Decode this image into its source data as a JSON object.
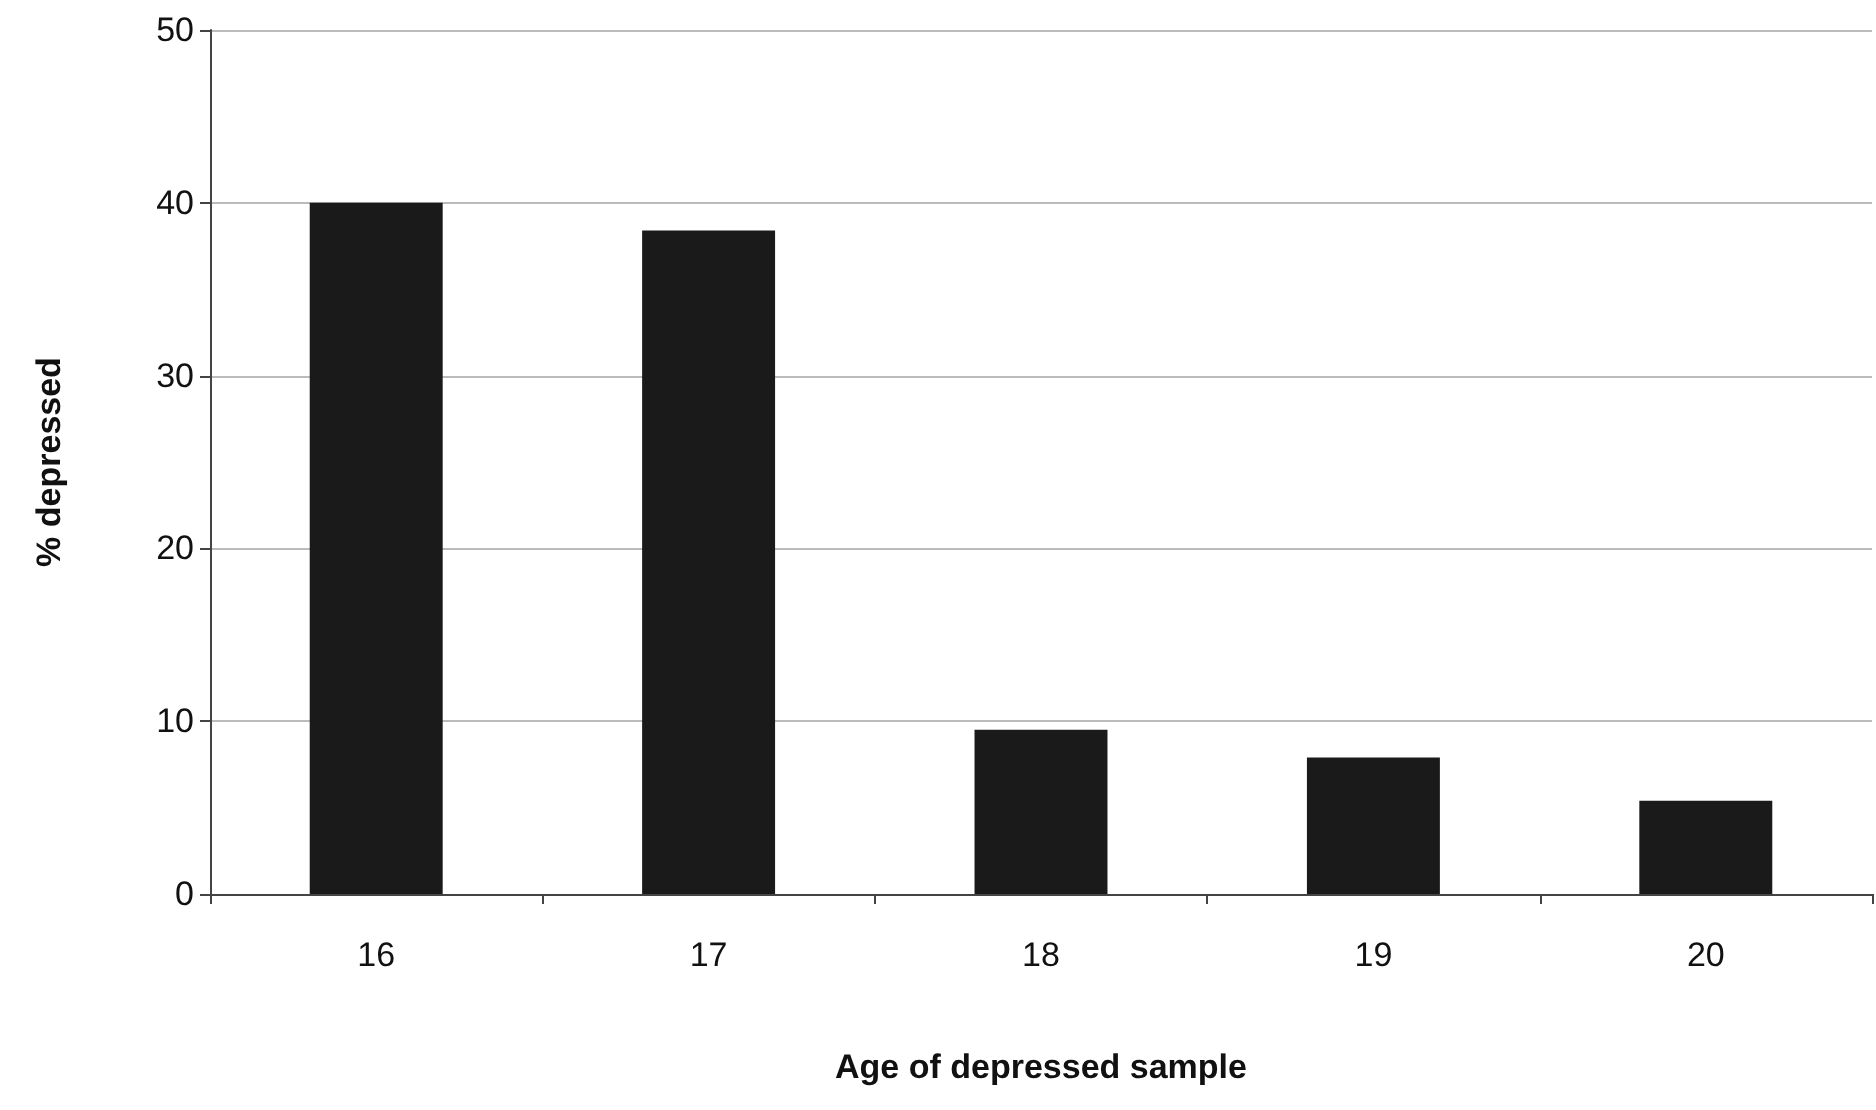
{
  "chart_data": {
    "type": "bar",
    "xlabel": "Age of depressed sample",
    "ylabel": "% depressed",
    "categories": [
      "16",
      "17",
      "18",
      "19",
      "20"
    ],
    "values": [
      40,
      38.4,
      9.5,
      7.9,
      5.4
    ],
    "color": "#1a1a1a",
    "ylim": [
      0,
      50
    ],
    "yticks": [
      0,
      10,
      20,
      30,
      40,
      50
    ],
    "grid": "y"
  }
}
